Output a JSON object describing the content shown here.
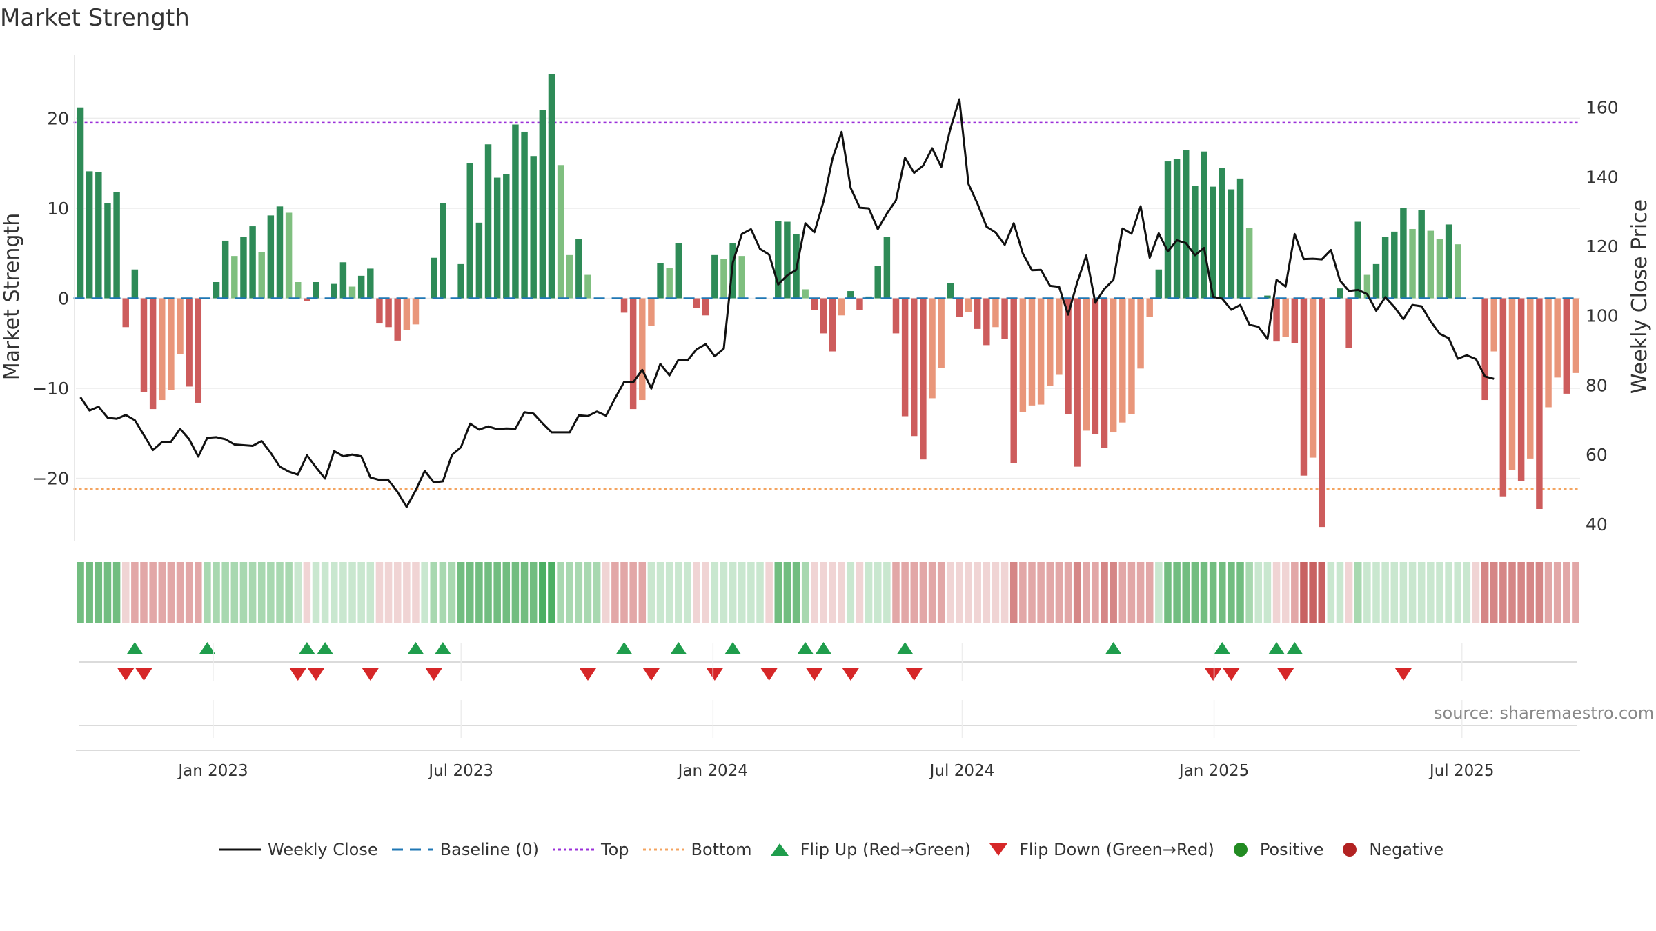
{
  "title": "Market Strength",
  "source": "source: sharemaestro.com",
  "colors": {
    "pos_strong": "#2e8b57",
    "pos_light": "#7fbf7f",
    "neg_strong": "#cd5c5c",
    "neg_light": "#e9967a",
    "price": "#111111",
    "baseline": "#1f77b4",
    "top": "#9b30d9",
    "bottom": "#f4a460",
    "flip_up": "#1f9d4c",
    "flip_down": "#d62728",
    "positive": "#228b22",
    "negative": "#b22222"
  },
  "legend": {
    "weekly_close": "Weekly Close",
    "baseline": "Baseline (0)",
    "top": "Top",
    "bottom": "Bottom",
    "flip_up": "Flip Up (Red→Green)",
    "flip_down": "Flip Down (Green→Red)",
    "positive": "Positive",
    "negative": "Negative"
  },
  "chart_data": {
    "type": "bar",
    "title": "Market Strength",
    "ylabel": "Market Strength",
    "y2label": "Weekly Close Price",
    "ylim": [
      -27,
      27
    ],
    "y2lim": [
      35,
      175
    ],
    "yticks": [
      -20,
      -10,
      0,
      10,
      20
    ],
    "y2ticks": [
      40,
      60,
      80,
      100,
      120,
      140,
      160
    ],
    "x_start": "2022-09-26",
    "x_end": "2025-09-22",
    "xticks": [
      {
        "date": "2023-01-01",
        "label": "Jan 2023"
      },
      {
        "date": "2023-07-01",
        "label": "Jul 2023"
      },
      {
        "date": "2024-01-01",
        "label": "Jan 2024"
      },
      {
        "date": "2024-07-01",
        "label": "Jul 2024"
      },
      {
        "date": "2025-01-01",
        "label": "Jan 2025"
      },
      {
        "date": "2025-07-01",
        "label": "Jul 2025"
      }
    ],
    "top_threshold": 19.5,
    "bottom_threshold": -21.2,
    "strength": [
      21.2,
      14.1,
      14,
      10.6,
      11.8,
      -3.2,
      3.2,
      -10.4,
      -12.3,
      -11.3,
      -10.2,
      -6.2,
      -9.8,
      -11.6,
      0,
      1.8,
      6.4,
      4.7,
      6.8,
      8,
      5.1,
      9.2,
      10.2,
      9.5,
      1.8,
      -0.3,
      1.8,
      0,
      1.6,
      4,
      1.3,
      2.5,
      3.3,
      -2.8,
      -3.2,
      -4.7,
      -3.5,
      -2.9,
      0,
      4.5,
      10.6,
      0,
      3.8,
      15,
      8.4,
      17.1,
      13.4,
      13.8,
      19.3,
      18.5,
      15.8,
      20.9,
      24.9,
      14.8,
      4.8,
      6.6,
      2.6,
      0,
      0,
      0,
      -1.6,
      -12.3,
      -11.3,
      -3.1,
      3.9,
      3.4,
      6.1,
      0,
      -1.1,
      -1.9,
      4.8,
      4.4,
      6.1,
      4.7,
      0,
      0,
      0,
      8.6,
      8.5,
      7.1,
      1,
      -1.3,
      -3.9,
      -5.9,
      -1.9,
      0.8,
      -1.3,
      0.2,
      3.6,
      6.8,
      -3.9,
      -13.1,
      -15.3,
      -17.9,
      -11.1,
      -7.7,
      1.7,
      -2.1,
      -1.5,
      -3.4,
      -5.2,
      -3.2,
      -4.5,
      -18.3,
      -12.6,
      -11.9,
      -11.8,
      -9.7,
      -8.5,
      -12.9,
      -18.7,
      -14.7,
      -15.1,
      -16.6,
      -14.9,
      -13.8,
      -12.9,
      -7.8,
      -2.1,
      3.2,
      15.2,
      15.5,
      16.5,
      12.5,
      16.3,
      12.4,
      14.5,
      12.1,
      13.3,
      7.8,
      0,
      0.3,
      -4.8,
      -4.3,
      -5,
      -19.7,
      -17.7,
      -25.4,
      0,
      1.1,
      -5.5,
      8.5,
      2.6,
      3.8,
      6.8,
      7.4,
      10,
      7.7,
      9.8,
      7.5,
      6.6,
      8.2,
      6,
      0,
      0,
      -11.3,
      -5.9,
      -22,
      -19.1,
      -20.3,
      -17.8,
      -23.4,
      -12.1,
      -8.8,
      -10.6,
      -8.3
    ],
    "close": [
      76.5,
      72.7,
      73.8,
      70.6,
      70.3,
      71.4,
      69.9,
      65.6,
      61.3,
      63.6,
      63.7,
      67.4,
      64.4,
      59.4,
      64.8,
      65,
      64.4,
      62.9,
      62.7,
      62.5,
      63.9,
      60.5,
      56.5,
      55.1,
      54.2,
      59.8,
      56.3,
      53.1,
      61,
      59.5,
      60,
      59.5,
      53.4,
      52.7,
      52.6,
      49.2,
      44.9,
      49.7,
      55.3,
      52,
      52.3,
      59.9,
      62.1,
      68.9,
      67.2,
      68.1,
      67.3,
      67.5,
      67.4,
      72.2,
      71.8,
      69,
      66.4,
      66.4,
      66.4,
      71.3,
      71.1,
      72.4,
      71.2,
      76.2,
      80.9,
      80.8,
      84.4,
      79,
      86.1,
      82.8,
      87.3,
      87.1,
      90.3,
      91.8,
      88.3,
      90.5,
      115.3,
      123.5,
      124.9,
      119.2,
      117.6,
      109,
      111.6,
      113.2,
      126.6,
      124,
      132.8,
      145.3,
      152.9,
      136.8,
      131.1,
      130.9,
      124.9,
      129.4,
      133.2,
      145.5,
      141.1,
      143.2,
      148.2,
      142.8,
      153.8,
      162.3,
      137.9,
      132.2,
      125.6,
      123.9,
      120.4,
      126.6,
      117.9,
      113.1,
      113.2,
      108.6,
      108.3,
      100.3,
      109.5,
      117.3,
      103.7,
      107.7,
      110.3,
      125.1,
      123.6,
      131.5,
      116.7,
      123.7,
      118.5,
      121.7,
      120.9,
      117.4,
      119.5,
      105.4,
      104.9,
      101.7,
      103.1,
      97.4,
      96.8,
      93.3,
      110.3,
      108.4,
      123.5,
      116.3,
      116.4,
      116.2,
      118.9,
      110.1,
      107.1,
      107.4,
      106.2,
      101.4,
      105.3,
      102.5,
      99,
      103.1,
      102.7,
      98.4,
      94.8,
      93.5,
      87.6,
      88.6,
      87.5,
      82.5,
      81.8
    ],
    "regime": [
      3,
      3,
      3,
      3,
      3,
      -1,
      -2,
      -2,
      -2,
      -2,
      -2,
      -2,
      -2,
      -2,
      2,
      2,
      2,
      2,
      2,
      2,
      2,
      2,
      2,
      2,
      1,
      -1,
      1,
      1,
      1,
      1,
      1,
      1,
      1,
      -1,
      -1,
      -1,
      -1,
      -1,
      1,
      2,
      2,
      2,
      3,
      3,
      3,
      3,
      3,
      3,
      3,
      3,
      3,
      4,
      4,
      2,
      2,
      2,
      2,
      2,
      -1,
      -2,
      -2,
      -2,
      -2,
      1,
      1,
      1,
      1,
      1,
      -1,
      -1,
      1,
      1,
      1,
      1,
      1,
      1,
      -1,
      3,
      3,
      3,
      2,
      -1,
      -1,
      -1,
      -1,
      1,
      -1,
      1,
      1,
      1,
      -2,
      -2,
      -2,
      -2,
      -2,
      -2,
      -1,
      -1,
      -1,
      -1,
      -1,
      -1,
      -1,
      -3,
      -2,
      -2,
      -2,
      -2,
      -2,
      -2,
      -3,
      -2,
      -2,
      -3,
      -3,
      -2,
      -2,
      -2,
      -2,
      1,
      3,
      3,
      3,
      3,
      3,
      3,
      3,
      3,
      3,
      2,
      1,
      1,
      -1,
      -1,
      -2,
      -4,
      -4,
      -4,
      1,
      1,
      -1,
      2,
      1,
      1,
      1,
      1,
      1,
      1,
      1,
      1,
      1,
      1,
      1,
      1,
      -1,
      -3,
      -3,
      -3,
      -3,
      -3,
      -3,
      -3,
      -2,
      -2,
      -2,
      -2
    ],
    "flip_up_weeks": [
      6,
      14,
      25,
      27,
      37,
      40,
      60,
      66,
      72,
      80,
      82,
      91,
      114,
      126,
      132,
      134
    ],
    "flip_down_weeks": [
      5,
      7,
      24,
      26,
      32,
      39,
      56,
      63,
      70,
      76,
      81,
      85,
      92,
      125,
      127,
      133,
      146
    ]
  }
}
